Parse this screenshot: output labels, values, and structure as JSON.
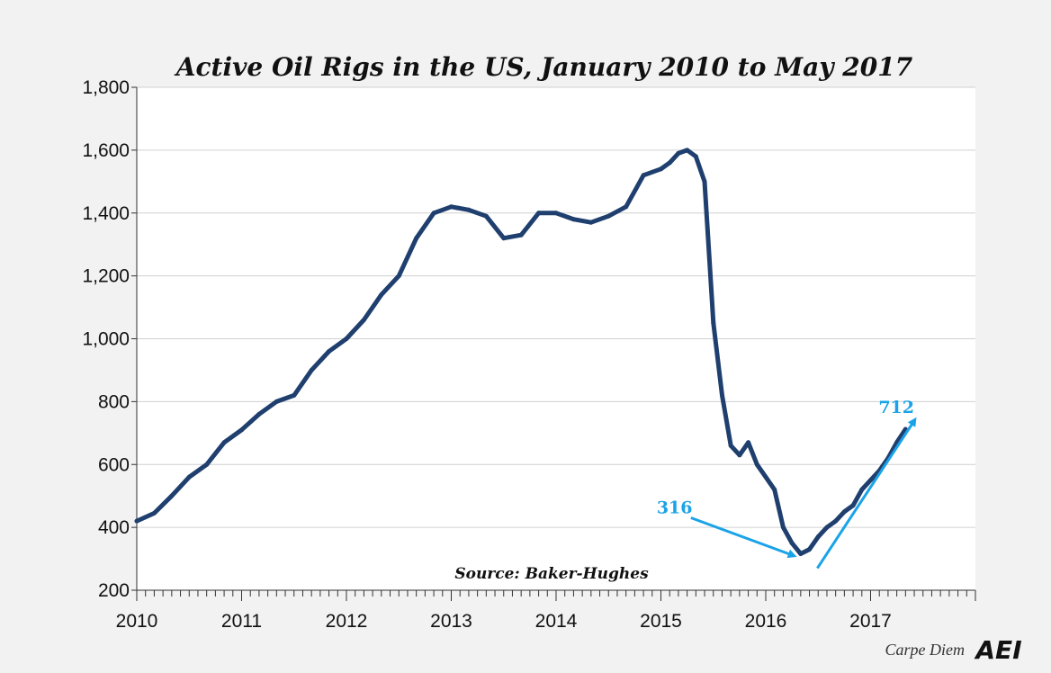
{
  "chart_data": {
    "type": "line",
    "title": "Active Oil Rigs in the US, January 2010 to May 2017",
    "xlabel": "",
    "ylabel": "",
    "ylim": [
      200,
      1800
    ],
    "xlim": [
      2010,
      2018
    ],
    "x_tick_labels": [
      "2010",
      "2011",
      "2012",
      "2013",
      "2014",
      "2015",
      "2016",
      "2017"
    ],
    "y_tick_labels": [
      "200",
      "400",
      "600",
      "800",
      "1,000",
      "1,200",
      "1,400",
      "1,600",
      "1,800"
    ],
    "grid": true,
    "series": [
      {
        "color": "#1f3f6e",
        "x": [
          "2010-01",
          "2010-03",
          "2010-05",
          "2010-07",
          "2010-09",
          "2010-11",
          "2011-01",
          "2011-03",
          "2011-05",
          "2011-07",
          "2011-09",
          "2011-11",
          "2012-01",
          "2012-03",
          "2012-05",
          "2012-07",
          "2012-09",
          "2012-11",
          "2013-01",
          "2013-03",
          "2013-05",
          "2013-07",
          "2013-09",
          "2013-11",
          "2014-01",
          "2014-03",
          "2014-05",
          "2014-07",
          "2014-09",
          "2014-11",
          "2015-01",
          "2015-02",
          "2015-03",
          "2015-04",
          "2015-05",
          "2015-06",
          "2015-07",
          "2015-08",
          "2015-09",
          "2015-10",
          "2015-11",
          "2015-12",
          "2016-01",
          "2016-02",
          "2016-03",
          "2016-04",
          "2016-05",
          "2016-06",
          "2016-07",
          "2016-08",
          "2016-09",
          "2016-10",
          "2016-11",
          "2016-12",
          "2017-01",
          "2017-02",
          "2017-03",
          "2017-04",
          "2017-05"
        ],
        "values": [
          420,
          445,
          500,
          560,
          600,
          670,
          710,
          760,
          800,
          820,
          900,
          960,
          1000,
          1060,
          1140,
          1200,
          1320,
          1400,
          1420,
          1410,
          1390,
          1320,
          1330,
          1400,
          1400,
          1380,
          1370,
          1390,
          1420,
          1520,
          1540,
          1560,
          1590,
          1600,
          1580,
          1500,
          1050,
          820,
          660,
          630,
          670,
          600,
          560,
          520,
          400,
          350,
          316,
          330,
          370,
          400,
          420,
          450,
          470,
          520,
          550,
          580,
          620,
          670,
          712
        ]
      }
    ],
    "annotations": [
      {
        "text": "316",
        "x": "2016-05",
        "value": 316
      },
      {
        "text": "712",
        "x": "2017-05",
        "value": 712
      }
    ],
    "source": "Source: Baker-Hughes"
  },
  "branding": {
    "text": "Carpe Diem",
    "logo": "AEI"
  },
  "colors": {
    "background": "#f2f2f2",
    "plot_background": "#ffffff",
    "line": "#1f3f6e",
    "callout": "#1aa3e8",
    "grid": "#d0d0d0"
  }
}
